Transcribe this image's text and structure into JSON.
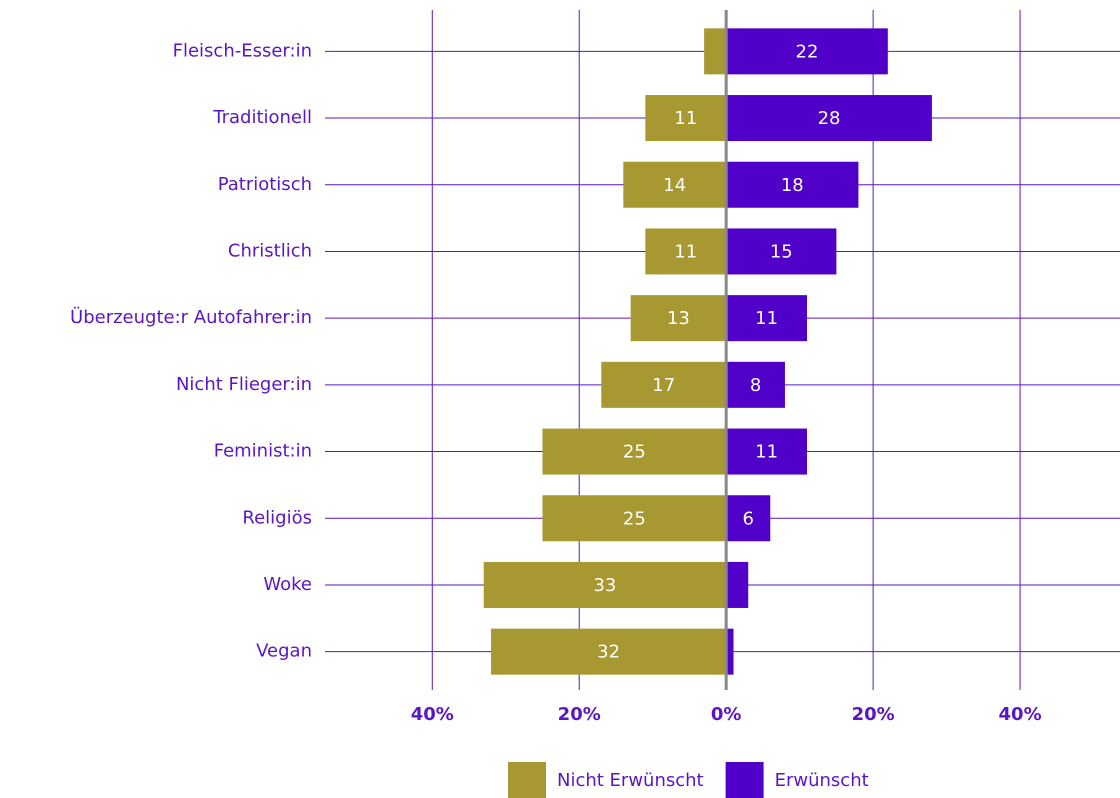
{
  "chart_data": {
    "type": "diverging-bar",
    "categories": [
      "Fleisch-Esser:in",
      "Traditionell",
      "Patriotisch",
      "Christlich",
      "Überzeugte:r Autofahrer:in",
      "Nicht Flieger:in",
      "Feminist:in",
      "Religiös",
      "Woke",
      "Vegan"
    ],
    "series": [
      {
        "name": "Nicht Erwünscht",
        "color": "#a89832",
        "values": [
          -3,
          -11,
          -14,
          -11,
          -13,
          -17,
          -25,
          -25,
          -33,
          -32
        ],
        "value_labels": [
          null,
          "11",
          "14",
          "11",
          "13",
          "17",
          "25",
          "25",
          "33",
          "32"
        ]
      },
      {
        "name": "Erwünscht",
        "color": "#5000c8",
        "values": [
          22,
          28,
          18,
          15,
          11,
          8,
          11,
          6,
          3,
          1
        ],
        "value_labels": [
          "22",
          "28",
          "18",
          "15",
          "11",
          "8",
          "11",
          "6",
          null,
          null
        ]
      }
    ],
    "xlim": [
      -54.6,
      53.6
    ],
    "xticks": [
      {
        "value": -40,
        "label": "40%"
      },
      {
        "value": -20,
        "label": "20%"
      },
      {
        "value": 0,
        "label": "0%"
      },
      {
        "value": 20,
        "label": "20%"
      },
      {
        "value": 40,
        "label": "40%"
      }
    ],
    "grid": true,
    "legend": "bottom"
  }
}
